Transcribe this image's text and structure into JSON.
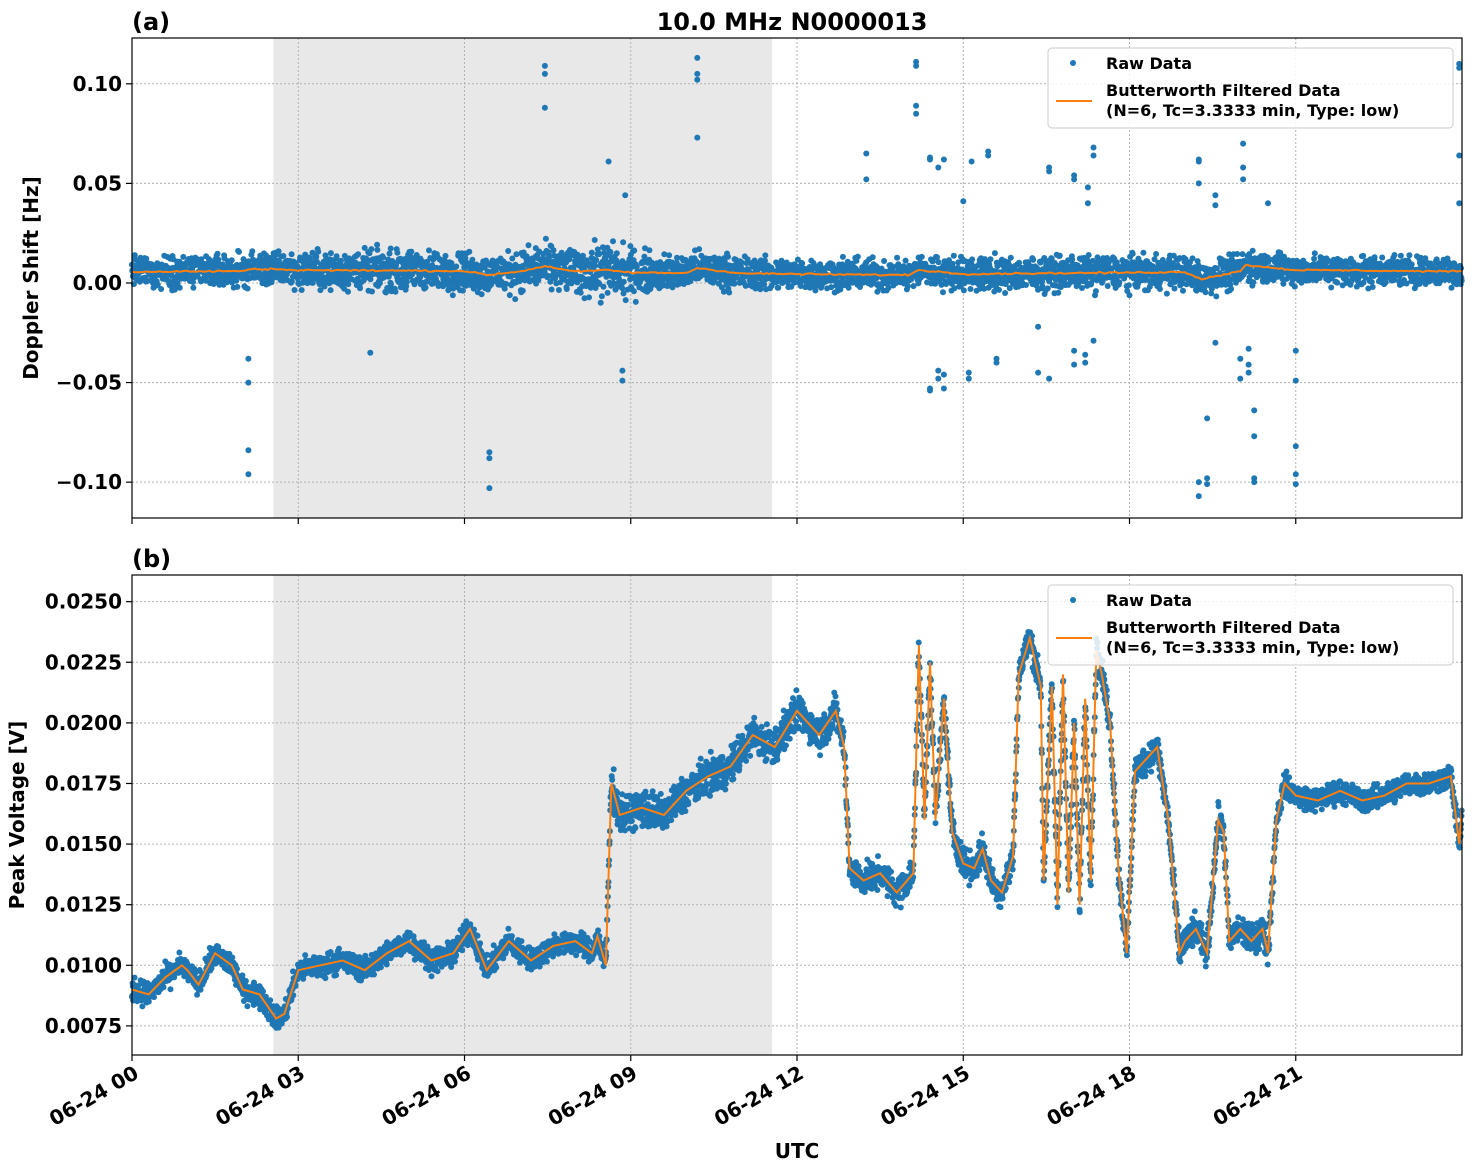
{
  "figure": {
    "title": "10.0 MHz N0000013",
    "xlabel": "UTC",
    "x_tick_labels": [
      "06-24 00",
      "06-24 03",
      "06-24 06",
      "06-24 09",
      "06-24 12",
      "06-24 15",
      "06-24 18",
      "06-24 21"
    ],
    "shaded_interval_hours": [
      2.55,
      11.55
    ],
    "colors": {
      "raw": "#1f77b4",
      "filtered": "#ff7f0e",
      "shade": "#e8e8e8"
    }
  },
  "chart_data": [
    {
      "type": "scatter",
      "panel_label": "(a)",
      "ylabel": "Doppler Shift [Hz]",
      "xlim_hours": [
        0,
        24
      ],
      "ylim": [
        -0.118,
        0.123
      ],
      "y_ticks": [
        0.1,
        0.05,
        0.0,
        -0.05,
        -0.1
      ],
      "y_tick_labels": [
        "0.10",
        "0.05",
        "0.00",
        "−0.05",
        "−0.10"
      ],
      "grid": true,
      "legend": {
        "placement": "top-right",
        "entries": [
          {
            "label": "Raw Data"
          },
          {
            "label": "Butterworth Filtered Data",
            "label2": "(N=6, Tc=3.3333 min, Type: low)"
          }
        ]
      },
      "series": [
        {
          "name": "Raw Data",
          "band_x": [
            0,
            1,
            2,
            3,
            4,
            5,
            6,
            7,
            8,
            8.5,
            8.9,
            9.5,
            10,
            11,
            12,
            13,
            14,
            15,
            16,
            17,
            18,
            19,
            20,
            21,
            22,
            23,
            24
          ],
          "band_halfwidth": [
            0.011,
            0.012,
            0.012,
            0.013,
            0.014,
            0.014,
            0.014,
            0.015,
            0.016,
            0.02,
            0.018,
            0.013,
            0.012,
            0.012,
            0.011,
            0.011,
            0.011,
            0.012,
            0.012,
            0.012,
            0.012,
            0.012,
            0.012,
            0.011,
            0.011,
            0.011,
            0.011
          ],
          "outliers": [
            [
              2.1,
              -0.038
            ],
            [
              2.1,
              -0.05
            ],
            [
              2.1,
              -0.084
            ],
            [
              2.1,
              -0.096
            ],
            [
              6.45,
              -0.085
            ],
            [
              6.45,
              -0.088
            ],
            [
              6.45,
              -0.103
            ],
            [
              7.45,
              0.109
            ],
            [
              7.45,
              0.105
            ],
            [
              7.45,
              0.088
            ],
            [
              10.2,
              0.113
            ],
            [
              10.2,
              0.105
            ],
            [
              10.2,
              0.102
            ],
            [
              10.2,
              0.073
            ],
            [
              8.6,
              0.061
            ],
            [
              8.85,
              -0.049
            ],
            [
              8.85,
              -0.044
            ],
            [
              8.9,
              0.044
            ],
            [
              4.3,
              -0.035
            ],
            [
              13.25,
              0.065
            ],
            [
              13.25,
              0.052
            ],
            [
              14.15,
              0.111
            ],
            [
              14.15,
              0.109
            ],
            [
              14.15,
              0.089
            ],
            [
              14.15,
              0.085
            ],
            [
              14.4,
              0.063
            ],
            [
              14.4,
              0.062
            ],
            [
              14.4,
              -0.054
            ],
            [
              14.4,
              -0.053
            ],
            [
              14.55,
              0.058
            ],
            [
              14.55,
              -0.048
            ],
            [
              14.55,
              -0.044
            ],
            [
              14.65,
              0.062
            ],
            [
              14.65,
              -0.053
            ],
            [
              14.65,
              -0.046
            ],
            [
              15.45,
              0.066
            ],
            [
              15.45,
              0.064
            ],
            [
              15.15,
              0.061
            ],
            [
              16.35,
              -0.045
            ],
            [
              16.35,
              -0.022
            ],
            [
              16.55,
              0.058
            ],
            [
              16.55,
              0.056
            ],
            [
              16.55,
              -0.048
            ],
            [
              17.0,
              0.054
            ],
            [
              17.0,
              0.052
            ],
            [
              17.0,
              -0.041
            ],
            [
              17.0,
              -0.034
            ],
            [
              17.2,
              -0.04
            ],
            [
              17.2,
              -0.036
            ],
            [
              17.35,
              0.068
            ],
            [
              17.35,
              0.064
            ],
            [
              17.35,
              -0.029
            ],
            [
              17.25,
              0.048
            ],
            [
              17.25,
              0.04
            ],
            [
              15.1,
              -0.048
            ],
            [
              15.1,
              -0.045
            ],
            [
              15.0,
              0.041
            ],
            [
              15.6,
              -0.038
            ],
            [
              15.6,
              -0.04
            ],
            [
              19.25,
              0.062
            ],
            [
              19.25,
              0.061
            ],
            [
              19.25,
              0.05
            ],
            [
              19.25,
              -0.1
            ],
            [
              19.25,
              -0.107
            ],
            [
              19.4,
              -0.068
            ],
            [
              19.4,
              -0.098
            ],
            [
              19.4,
              -0.101
            ],
            [
              19.55,
              0.044
            ],
            [
              19.55,
              0.039
            ],
            [
              19.55,
              -0.03
            ],
            [
              20.05,
              0.07
            ],
            [
              20.05,
              0.058
            ],
            [
              20.05,
              0.052
            ],
            [
              20.0,
              -0.038
            ],
            [
              20.0,
              -0.048
            ],
            [
              20.25,
              -0.064
            ],
            [
              20.25,
              -0.077
            ],
            [
              20.25,
              -0.098
            ],
            [
              20.25,
              -0.1
            ],
            [
              20.15,
              -0.033
            ],
            [
              20.15,
              -0.041
            ],
            [
              20.15,
              -0.045
            ],
            [
              20.5,
              0.04
            ],
            [
              21.0,
              -0.034
            ],
            [
              21.0,
              -0.049
            ],
            [
              21.0,
              -0.082
            ],
            [
              21.0,
              -0.096
            ],
            [
              21.0,
              -0.101
            ],
            [
              23.95,
              0.064
            ],
            [
              23.95,
              0.11
            ],
            [
              23.95,
              0.108
            ],
            [
              23.95,
              0.04
            ]
          ]
        },
        {
          "name": "Butterworth Filtered Data",
          "x": [
            0,
            1,
            2,
            2.1,
            2.5,
            3,
            4,
            5,
            6,
            6.4,
            7,
            7.45,
            8,
            8.6,
            9,
            10,
            10.2,
            11,
            12,
            13,
            14,
            14.2,
            15,
            16,
            17,
            18,
            19,
            19.3,
            20,
            20.1,
            21,
            22,
            23,
            24
          ],
          "y": [
            0.0055,
            0.0058,
            0.006,
            0.0068,
            0.007,
            0.0065,
            0.0063,
            0.0062,
            0.006,
            0.004,
            0.0058,
            0.0085,
            0.0057,
            0.0065,
            0.0052,
            0.005,
            0.0075,
            0.0048,
            0.0045,
            0.0042,
            0.004,
            0.0065,
            0.0045,
            0.0048,
            0.005,
            0.0052,
            0.0055,
            0.002,
            0.006,
            0.009,
            0.0065,
            0.0063,
            0.006,
            0.0058
          ]
        }
      ]
    },
    {
      "type": "scatter",
      "panel_label": "(b)",
      "ylabel": "Peak Voltage [V]",
      "xlim_hours": [
        0,
        24
      ],
      "ylim": [
        0.0063,
        0.0261
      ],
      "y_ticks": [
        0.025,
        0.0225,
        0.02,
        0.0175,
        0.015,
        0.0125,
        0.01,
        0.0075
      ],
      "y_tick_labels": [
        "0.0250",
        "0.0225",
        "0.0200",
        "0.0175",
        "0.0150",
        "0.0125",
        "0.0100",
        "0.0075"
      ],
      "grid": true,
      "legend": {
        "placement": "top-right",
        "entries": [
          {
            "label": "Raw Data"
          },
          {
            "label": "Butterworth Filtered Data",
            "label2": "(N=6, Tc=3.3333 min, Type: low)"
          }
        ]
      },
      "series": [
        {
          "name": "Butterworth Filtered Data",
          "x": [
            0,
            0.3,
            0.6,
            0.9,
            1.0,
            1.2,
            1.5,
            1.8,
            2.0,
            2.3,
            2.6,
            2.75,
            3.0,
            3.4,
            3.8,
            4.2,
            4.6,
            5.0,
            5.4,
            5.8,
            6.1,
            6.4,
            6.8,
            7.2,
            7.6,
            8.0,
            8.3,
            8.4,
            8.55,
            8.65,
            8.8,
            9.2,
            9.6,
            10.0,
            10.4,
            10.8,
            11.2,
            11.6,
            12.0,
            12.4,
            12.7,
            12.85,
            12.95,
            13.2,
            13.5,
            13.8,
            14.1,
            14.2,
            14.3,
            14.4,
            14.5,
            14.65,
            14.8,
            15.0,
            15.2,
            15.35,
            15.5,
            15.7,
            15.9,
            16.0,
            16.2,
            16.4,
            16.45,
            16.6,
            16.7,
            16.8,
            16.9,
            17.0,
            17.1,
            17.2,
            17.3,
            17.4,
            17.5,
            17.65,
            17.8,
            17.95,
            18.1,
            18.3,
            18.5,
            18.7,
            18.9,
            19.0,
            19.2,
            19.4,
            19.6,
            19.7,
            19.8,
            20.0,
            20.2,
            20.4,
            20.5,
            20.65,
            20.8,
            21.0,
            21.4,
            21.8,
            22.2,
            22.6,
            23.0,
            23.4,
            23.8,
            23.95,
            24.0
          ],
          "y": [
            0.009,
            0.0088,
            0.0095,
            0.01,
            0.0098,
            0.0092,
            0.0105,
            0.01,
            0.009,
            0.0088,
            0.0078,
            0.008,
            0.0098,
            0.01,
            0.0102,
            0.0098,
            0.0105,
            0.011,
            0.0102,
            0.0105,
            0.0115,
            0.0098,
            0.011,
            0.0102,
            0.0108,
            0.011,
            0.0105,
            0.0112,
            0.01,
            0.0175,
            0.0162,
            0.0165,
            0.0162,
            0.0172,
            0.0178,
            0.0182,
            0.0195,
            0.019,
            0.0205,
            0.0195,
            0.0205,
            0.019,
            0.014,
            0.0135,
            0.0138,
            0.013,
            0.0138,
            0.0232,
            0.016,
            0.0225,
            0.016,
            0.021,
            0.0155,
            0.0142,
            0.014,
            0.0148,
            0.0135,
            0.013,
            0.0145,
            0.022,
            0.0235,
            0.0215,
            0.0135,
            0.0215,
            0.0125,
            0.022,
            0.013,
            0.02,
            0.0125,
            0.021,
            0.0135,
            0.023,
            0.022,
            0.02,
            0.014,
            0.0105,
            0.018,
            0.0185,
            0.019,
            0.016,
            0.0105,
            0.011,
            0.0115,
            0.0105,
            0.016,
            0.0155,
            0.011,
            0.0115,
            0.011,
            0.0115,
            0.0105,
            0.016,
            0.0175,
            0.017,
            0.0168,
            0.0172,
            0.0168,
            0.017,
            0.0175,
            0.0175,
            0.0178,
            0.015,
            0.0165
          ]
        }
      ]
    }
  ]
}
